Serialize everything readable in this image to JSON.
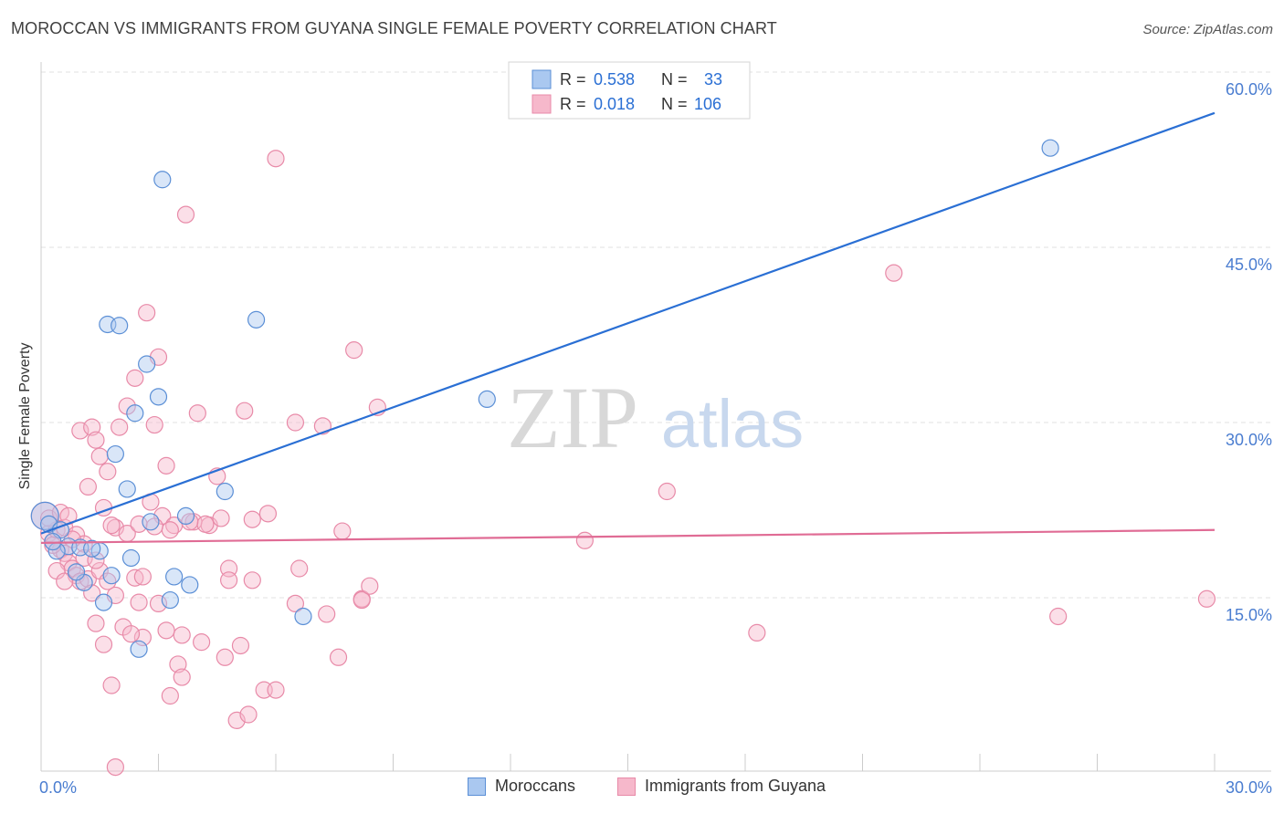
{
  "title": "MOROCCAN VS IMMIGRANTS FROM GUYANA SINGLE FEMALE POVERTY CORRELATION CHART",
  "source": "Source: ZipAtlas.com",
  "watermark": {
    "zip": "ZIP",
    "atlas": "atlas"
  },
  "colors": {
    "blue_fill": "#aac8f0",
    "blue_stroke": "#5b8fd6",
    "blue_line": "#2a6fd4",
    "pink_fill": "#f6b8cb",
    "pink_stroke": "#e88aa8",
    "pink_line": "#e06c95",
    "axis_label": "#4a7dd0",
    "grid": "#e0e0e0"
  },
  "legend": {
    "rows": [
      {
        "r_label": "R =",
        "r_value": "0.538",
        "n_label": "N =",
        "n_value": "33",
        "series": "blue"
      },
      {
        "r_label": "R =",
        "r_value": "0.018",
        "n_label": "N =",
        "n_value": "106",
        "series": "pink"
      }
    ]
  },
  "bottom_legend": {
    "items": [
      {
        "label": "Moroccans",
        "series": "blue"
      },
      {
        "label": "Immigrants from Guyana",
        "series": "pink"
      }
    ]
  },
  "chart_data": {
    "type": "scatter",
    "title": "MOROCCAN VS IMMIGRANTS FROM GUYANA SINGLE FEMALE POVERTY CORRELATION CHART",
    "xlabel": "",
    "ylabel": "Single Female Poverty",
    "xlim": [
      0,
      30
    ],
    "ylim": [
      0,
      60
    ],
    "x_tick_labels": [
      {
        "value": 0,
        "label": "0.0%",
        "anchor": "start"
      },
      {
        "value": 30,
        "label": "30.0%",
        "anchor": "end"
      }
    ],
    "y_tick_labels": [
      {
        "value": 15,
        "label": "15.0%"
      },
      {
        "value": 30,
        "label": "30.0%"
      },
      {
        "value": 45,
        "label": "45.0%"
      },
      {
        "value": 60,
        "label": "60.0%"
      }
    ],
    "series": [
      {
        "name": "Moroccans",
        "color": "blue",
        "R": 0.538,
        "N": 33,
        "trend": {
          "x": [
            0,
            30
          ],
          "y": [
            20.5,
            56.5
          ]
        },
        "points": [
          [
            0.1,
            22.0,
            3
          ],
          [
            0.2,
            21.3,
            1
          ],
          [
            0.5,
            20.8,
            1
          ],
          [
            0.7,
            19.4,
            1
          ],
          [
            0.4,
            19.0,
            1
          ],
          [
            1.0,
            19.3,
            1
          ],
          [
            1.5,
            19.0,
            1
          ],
          [
            1.3,
            19.2,
            1
          ],
          [
            1.1,
            16.3,
            1
          ],
          [
            1.6,
            14.6,
            1
          ],
          [
            2.3,
            18.4,
            1
          ],
          [
            1.7,
            38.4,
            1
          ],
          [
            2.0,
            38.3,
            1
          ],
          [
            2.7,
            35.0,
            1
          ],
          [
            3.0,
            32.2,
            1
          ],
          [
            2.4,
            30.8,
            1
          ],
          [
            1.9,
            27.3,
            1
          ],
          [
            2.2,
            24.3,
            1
          ],
          [
            3.1,
            50.8,
            1
          ],
          [
            3.7,
            22.0,
            1
          ],
          [
            2.8,
            21.5,
            1
          ],
          [
            3.4,
            16.8,
            1
          ],
          [
            3.8,
            16.1,
            1
          ],
          [
            3.3,
            14.8,
            1
          ],
          [
            4.7,
            24.1,
            1
          ],
          [
            5.5,
            38.8,
            1
          ],
          [
            2.5,
            10.6,
            1
          ],
          [
            6.7,
            13.4,
            1
          ],
          [
            11.4,
            32.0,
            1
          ],
          [
            25.8,
            53.5,
            1
          ],
          [
            0.3,
            19.8,
            1
          ],
          [
            0.9,
            17.2,
            1
          ],
          [
            1.8,
            16.9,
            1
          ]
        ]
      },
      {
        "name": "Immigrants from Guyana",
        "color": "pink",
        "R": 0.018,
        "N": 106,
        "trend": {
          "x": [
            0,
            30
          ],
          "y": [
            19.7,
            20.8
          ]
        },
        "points": [
          [
            0.1,
            22.0,
            2
          ],
          [
            0.2,
            20.5,
            1
          ],
          [
            0.3,
            19.8,
            1
          ],
          [
            0.4,
            20.8,
            1
          ],
          [
            0.5,
            19.1,
            1
          ],
          [
            0.6,
            18.8,
            1
          ],
          [
            0.7,
            18.0,
            1
          ],
          [
            0.8,
            17.5,
            1
          ],
          [
            0.9,
            16.9,
            1
          ],
          [
            1.0,
            16.4,
            1
          ],
          [
            0.2,
            21.8,
            1
          ],
          [
            0.3,
            19.5,
            1
          ],
          [
            0.6,
            21.0,
            1
          ],
          [
            0.9,
            20.4,
            1
          ],
          [
            1.1,
            19.6,
            1
          ],
          [
            1.2,
            16.6,
            1
          ],
          [
            1.3,
            15.4,
            1
          ],
          [
            1.4,
            12.8,
            1
          ],
          [
            1.6,
            11.0,
            1
          ],
          [
            1.8,
            7.5,
            1
          ],
          [
            1.0,
            29.3,
            1
          ],
          [
            1.3,
            29.6,
            1
          ],
          [
            1.4,
            28.5,
            1
          ],
          [
            1.5,
            27.1,
            1
          ],
          [
            1.7,
            25.8,
            1
          ],
          [
            1.2,
            24.5,
            1
          ],
          [
            1.6,
            22.7,
            1
          ],
          [
            1.9,
            21.0,
            1
          ],
          [
            2.2,
            20.5,
            1
          ],
          [
            2.4,
            16.7,
            1
          ],
          [
            2.0,
            29.6,
            1
          ],
          [
            2.2,
            31.4,
            1
          ],
          [
            2.4,
            33.8,
            1
          ],
          [
            2.7,
            39.4,
            1
          ],
          [
            3.0,
            35.6,
            1
          ],
          [
            2.9,
            29.8,
            1
          ],
          [
            3.2,
            26.3,
            1
          ],
          [
            2.8,
            23.2,
            1
          ],
          [
            3.1,
            22.0,
            1
          ],
          [
            3.4,
            21.2,
            1
          ],
          [
            2.5,
            14.6,
            1
          ],
          [
            3.0,
            14.5,
            1
          ],
          [
            3.2,
            12.2,
            1
          ],
          [
            2.6,
            11.6,
            1
          ],
          [
            3.5,
            9.3,
            1
          ],
          [
            3.6,
            8.2,
            1
          ],
          [
            3.3,
            6.6,
            1
          ],
          [
            3.7,
            47.8,
            1
          ],
          [
            4.0,
            30.8,
            1
          ],
          [
            4.5,
            25.4,
            1
          ],
          [
            4.3,
            21.2,
            1
          ],
          [
            4.6,
            21.8,
            1
          ],
          [
            4.8,
            17.5,
            1
          ],
          [
            4.8,
            16.5,
            1
          ],
          [
            4.7,
            9.9,
            1
          ],
          [
            5.1,
            10.9,
            1
          ],
          [
            5.0,
            4.5,
            1
          ],
          [
            5.3,
            5.0,
            1
          ],
          [
            5.2,
            31.0,
            1
          ],
          [
            5.4,
            21.7,
            1
          ],
          [
            5.4,
            16.5,
            1
          ],
          [
            5.8,
            22.2,
            1
          ],
          [
            5.7,
            7.1,
            1
          ],
          [
            6.0,
            7.1,
            1
          ],
          [
            6.0,
            52.6,
            1
          ],
          [
            6.5,
            30.0,
            1
          ],
          [
            6.6,
            17.5,
            1
          ],
          [
            6.5,
            14.5,
            1
          ],
          [
            7.2,
            29.7,
            1
          ],
          [
            7.3,
            13.6,
            1
          ],
          [
            7.6,
            9.9,
            1
          ],
          [
            7.7,
            20.7,
            1
          ],
          [
            8.0,
            36.2,
            1
          ],
          [
            8.2,
            14.9,
            1
          ],
          [
            8.2,
            14.8,
            1
          ],
          [
            8.4,
            16.0,
            1
          ],
          [
            8.6,
            31.3,
            1
          ],
          [
            13.9,
            19.9,
            1
          ],
          [
            16.0,
            24.1,
            1
          ],
          [
            18.3,
            12.0,
            1
          ],
          [
            21.8,
            42.8,
            1
          ],
          [
            26.0,
            13.4,
            1
          ],
          [
            29.8,
            14.9,
            1
          ],
          [
            0.5,
            22.3,
            1
          ],
          [
            0.7,
            22.0,
            1
          ],
          [
            0.8,
            20.0,
            1
          ],
          [
            1.1,
            18.4,
            1
          ],
          [
            1.5,
            17.3,
            1
          ],
          [
            1.7,
            16.4,
            1
          ],
          [
            1.9,
            15.2,
            1
          ],
          [
            2.1,
            12.5,
            1
          ],
          [
            2.3,
            11.9,
            1
          ],
          [
            2.6,
            16.8,
            1
          ],
          [
            3.3,
            20.8,
            1
          ],
          [
            3.9,
            21.5,
            1
          ],
          [
            4.2,
            21.3,
            1
          ],
          [
            1.4,
            18.2,
            1
          ],
          [
            2.5,
            21.3,
            1
          ],
          [
            0.4,
            17.3,
            1
          ],
          [
            0.6,
            16.4,
            1
          ],
          [
            1.8,
            21.2,
            1
          ],
          [
            2.9,
            21.1,
            1
          ],
          [
            3.6,
            11.8,
            1
          ],
          [
            4.1,
            11.2,
            1
          ],
          [
            3.8,
            21.5,
            1
          ],
          [
            1.9,
            0.5,
            1
          ]
        ]
      }
    ]
  },
  "axis": {
    "ylabel": "Single Female Poverty"
  }
}
